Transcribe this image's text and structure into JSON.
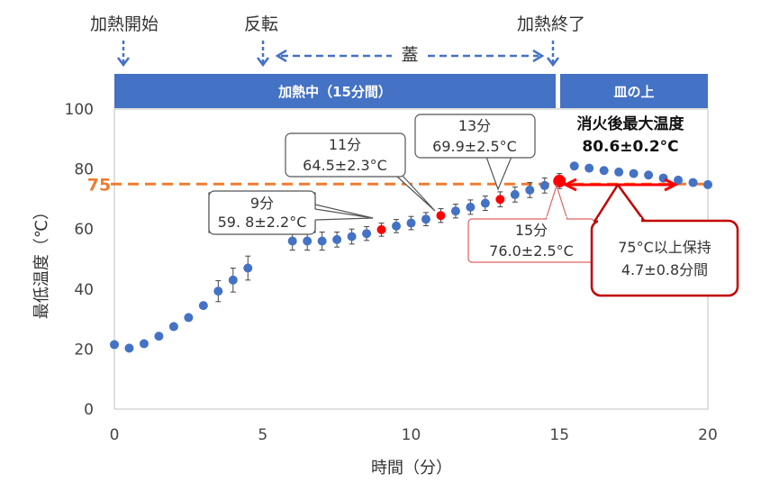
{
  "colors": {
    "marker": "#4472c4",
    "highlight": "#ff0000",
    "threshold": "#ed7d31",
    "phase_bar": "#4472c4",
    "callout_red": "#c00000"
  },
  "stages": {
    "heating_start": "加熱開始",
    "flip": "反転",
    "lid": "蓋",
    "heating_end": "加熱終了"
  },
  "phases": {
    "heating": "加熱中（15分間）",
    "plate": "皿の上"
  },
  "threshold_label": "75",
  "callouts": {
    "c9_time": "9分",
    "c9_temp": "59. 8±2.2°C",
    "c11_time": "11分",
    "c11_temp": "64.5±2.3°C",
    "c13_time": "13分",
    "c13_temp": "69.9±2.5°C",
    "c15_time": "15分",
    "c15_temp": "76.0±2.5°C",
    "max_title": "消火後最大温度",
    "max_value": "80.6±0.2°C",
    "hold_line1": "75°C以上保持",
    "hold_line2": "4.7±0.8分間"
  },
  "chart_data": {
    "type": "scatter",
    "xlabel": "時間（分）",
    "ylabel": "最低温度（℃）",
    "xlim": [
      0,
      20
    ],
    "ylim": [
      0,
      100
    ],
    "xticks": [
      0,
      5,
      10,
      15,
      20
    ],
    "yticks": [
      0,
      20,
      40,
      60,
      80,
      100
    ],
    "threshold": 75,
    "grid": false,
    "series": [
      {
        "points": [
          {
            "x": 0,
            "y": 21.5,
            "err": 0
          },
          {
            "x": 0.5,
            "y": 20.3,
            "err": 0
          },
          {
            "x": 1,
            "y": 21.8,
            "err": 0
          },
          {
            "x": 1.5,
            "y": 24.3,
            "err": 0
          },
          {
            "x": 2,
            "y": 27.5,
            "err": 0
          },
          {
            "x": 2.5,
            "y": 30.5,
            "err": 0
          },
          {
            "x": 3,
            "y": 34.5,
            "err": 1
          },
          {
            "x": 3.5,
            "y": 39.3,
            "err": 3.5
          },
          {
            "x": 4,
            "y": 43,
            "err": 4
          },
          {
            "x": 4.5,
            "y": 47,
            "err": 4
          },
          {
            "x": 6,
            "y": 56,
            "err": 3
          },
          {
            "x": 6.5,
            "y": 56,
            "err": 3
          },
          {
            "x": 7,
            "y": 56,
            "err": 3
          },
          {
            "x": 7.5,
            "y": 56.5,
            "err": 2.5
          },
          {
            "x": 8,
            "y": 57.5,
            "err": 2.5
          },
          {
            "x": 8.5,
            "y": 58.5,
            "err": 2.3
          },
          {
            "x": 9,
            "y": 59.8,
            "err": 2.2,
            "highlight": true
          },
          {
            "x": 9.5,
            "y": 61,
            "err": 2.2
          },
          {
            "x": 10,
            "y": 62,
            "err": 2.2
          },
          {
            "x": 10.5,
            "y": 63.3,
            "err": 2.2
          },
          {
            "x": 11,
            "y": 64.5,
            "err": 2.3,
            "highlight": true
          },
          {
            "x": 11.5,
            "y": 66,
            "err": 2.3
          },
          {
            "x": 12,
            "y": 67.3,
            "err": 2.4
          },
          {
            "x": 12.5,
            "y": 68.6,
            "err": 2.4
          },
          {
            "x": 13,
            "y": 69.9,
            "err": 2.5,
            "highlight": true
          },
          {
            "x": 13.5,
            "y": 71.5,
            "err": 2.5
          },
          {
            "x": 14,
            "y": 73,
            "err": 2.5
          },
          {
            "x": 14.5,
            "y": 74.5,
            "err": 2.5
          },
          {
            "x": 15,
            "y": 76,
            "err": 2.5,
            "highlight": true
          },
          {
            "x": 15.5,
            "y": 81,
            "err": 1
          },
          {
            "x": 16,
            "y": 80.3,
            "err": 0.5
          },
          {
            "x": 16.5,
            "y": 79.5,
            "err": 0.5
          },
          {
            "x": 17,
            "y": 79,
            "err": 0.5
          },
          {
            "x": 17.5,
            "y": 78.5,
            "err": 0.5
          },
          {
            "x": 18,
            "y": 78,
            "err": 0.5
          },
          {
            "x": 18.5,
            "y": 77,
            "err": 0.5
          },
          {
            "x": 19,
            "y": 76.3,
            "err": 0.5
          },
          {
            "x": 19.5,
            "y": 75.5,
            "err": 0.5
          },
          {
            "x": 20,
            "y": 74.8,
            "err": 0.5
          }
        ]
      }
    ]
  }
}
